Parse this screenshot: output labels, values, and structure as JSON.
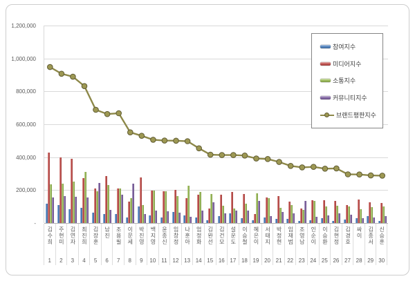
{
  "chart_data": {
    "type": "bar",
    "subtype": "grouped-bars-with-line-overlay",
    "title": "",
    "categories": [
      "김수희",
      "주현미",
      "김연자",
      "최진희",
      "김장훈",
      "남진",
      "조용필",
      "이문세",
      "박진영",
      "백지영",
      "윤종신",
      "임창정",
      "나훈아",
      "엄정화",
      "김완선",
      "김건모",
      "설운도",
      "이승철",
      "혜은이",
      "서태지",
      "박정현",
      "임재범",
      "조영남",
      "인순이",
      "이승환",
      "김현정",
      "김경호",
      "싸이",
      "김종서",
      "신승훈"
    ],
    "ranks": [
      1,
      2,
      3,
      4,
      5,
      6,
      7,
      8,
      9,
      10,
      11,
      12,
      13,
      14,
      15,
      16,
      17,
      18,
      19,
      20,
      21,
      22,
      23,
      24,
      25,
      26,
      27,
      28,
      29,
      30
    ],
    "series": [
      {
        "key": "participation",
        "name": "참여지수",
        "type": "bar",
        "color": "#4f81bd",
        "values": [
          119000,
          109000,
          84000,
          91000,
          65000,
          56000,
          56000,
          33000,
          102000,
          47000,
          33000,
          67000,
          47000,
          35000,
          15000,
          43000,
          61000,
          29000,
          15000,
          33000,
          24000,
          24000,
          12000,
          15000,
          29000,
          12000,
          20000,
          30000,
          43000,
          12000
        ]
      },
      {
        "key": "media",
        "name": "미디어지수",
        "type": "bar",
        "color": "#c0504d",
        "values": [
          430000,
          399000,
          389000,
          274000,
          212000,
          284000,
          210000,
          132000,
          279000,
          199000,
          192000,
          201000,
          150000,
          174000,
          90000,
          171000,
          189000,
          178000,
          54000,
          157000,
          164000,
          130000,
          88000,
          139000,
          140000,
          135000,
          110000,
          143000,
          125000,
          120000
        ]
      },
      {
        "key": "communication",
        "name": "소통지수",
        "type": "bar",
        "color": "#9bbb59",
        "values": [
          237000,
          240000,
          254000,
          309000,
          194000,
          230000,
          212000,
          150000,
          109000,
          199000,
          193000,
          164000,
          226000,
          190000,
          178000,
          106000,
          88000,
          116000,
          181000,
          150000,
          92000,
          109000,
          79000,
          136000,
          102000,
          105000,
          100000,
          84000,
          98000,
          102000
        ]
      },
      {
        "key": "community",
        "name": "커뮤니티지수",
        "type": "bar",
        "color": "#8064a2",
        "values": [
          157000,
          164000,
          161000,
          154000,
          243000,
          81000,
          171000,
          240000,
          54000,
          74000,
          73000,
          62000,
          39000,
          75000,
          125000,
          61000,
          74000,
          77000,
          136000,
          43000,
          67000,
          61000,
          133000,
          40000,
          47000,
          61000,
          50000,
          30000,
          33000,
          43000
        ]
      },
      {
        "key": "brand-reputation",
        "name": "브랜드평판지수",
        "type": "line",
        "color": "#8d8849",
        "marker_fill": "#9d9853",
        "marker_stroke": "#5f5b33",
        "values": [
          948000,
          907000,
          889000,
          832000,
          688000,
          662000,
          667000,
          551000,
          530000,
          506000,
          501000,
          500000,
          497000,
          454000,
          415000,
          413000,
          413000,
          410000,
          392000,
          389000,
          371000,
          347000,
          338000,
          341000,
          330000,
          332000,
          296000,
          295000,
          289000,
          288000
        ]
      }
    ],
    "y_axis": {
      "min": 0,
      "max": 1200000,
      "tick_interval": 200000,
      "tick_labels": [
        "-",
        "200,000",
        "400,000",
        "600,000",
        "800,000",
        "1,000,000",
        "1,200,000"
      ]
    },
    "x_axis": {
      "label": ""
    },
    "grid": true,
    "legend_position": "right-top",
    "colors": {
      "gridline": "#d9d9d9",
      "axis_line": "#b3b3b3",
      "text": "#595959",
      "legend_border": "#848484",
      "frame_border": "#cdcdcd"
    }
  }
}
